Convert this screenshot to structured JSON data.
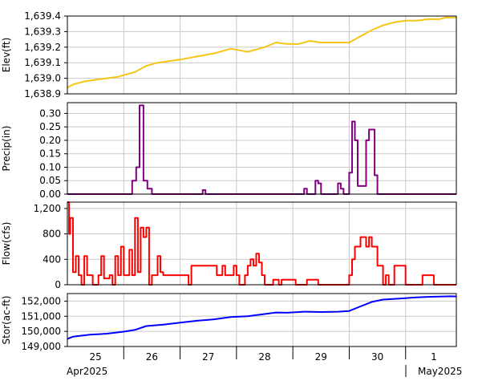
{
  "chart_data": [
    {
      "type": "line",
      "ylabel": "Elev(ft)",
      "ylim": [
        1638.9,
        1639.4
      ],
      "yticks": [
        1638.9,
        1639.0,
        1639.1,
        1639.2,
        1639.3,
        1639.4
      ],
      "ytick_labels": [
        "1,638.9",
        "1,639.0",
        "1,639.1",
        "1,639.2",
        "1,639.3",
        "1,639.4"
      ],
      "color": "#f5c518",
      "step": false,
      "x": [
        0,
        0.1,
        0.3,
        0.5,
        0.7,
        0.9,
        1.0,
        1.2,
        1.4,
        1.6,
        1.8,
        2.0,
        2.3,
        2.6,
        2.9,
        3.2,
        3.5,
        3.7,
        3.9,
        4.1,
        4.3,
        4.5,
        4.7,
        4.9,
        5.0,
        5.2,
        5.4,
        5.6,
        5.8,
        6.0,
        6.2,
        6.4,
        6.6,
        6.7,
        6.8,
        6.9
      ],
      "values": [
        1638.94,
        1638.96,
        1638.98,
        1638.99,
        1639.0,
        1639.01,
        1639.02,
        1639.04,
        1639.08,
        1639.1,
        1639.11,
        1639.12,
        1639.14,
        1639.16,
        1639.19,
        1639.17,
        1639.2,
        1639.23,
        1639.22,
        1639.22,
        1639.24,
        1639.23,
        1639.23,
        1639.23,
        1639.23,
        1639.27,
        1639.31,
        1639.34,
        1639.36,
        1639.37,
        1639.37,
        1639.38,
        1639.38,
        1639.39,
        1639.39,
        1639.39
      ]
    },
    {
      "type": "line",
      "ylabel": "Precip(in)",
      "ylim": [
        0,
        0.34
      ],
      "yticks": [
        0,
        0.05,
        0.1,
        0.15,
        0.2,
        0.25,
        0.3
      ],
      "ytick_labels": [
        "0.00",
        "0.05",
        "0.10",
        "0.15",
        "0.20",
        "0.25",
        "0.30"
      ],
      "color": "#800080",
      "step": true,
      "x": [
        0,
        1.15,
        1.22,
        1.28,
        1.35,
        1.42,
        1.5,
        2.4,
        2.45,
        4.2,
        4.25,
        4.4,
        4.45,
        4.5,
        4.8,
        4.85,
        4.9,
        5.0,
        5.05,
        5.1,
        5.15,
        5.2,
        5.3,
        5.35,
        5.45,
        5.5,
        6.9
      ],
      "values": [
        0,
        0.05,
        0.1,
        0.33,
        0.05,
        0.02,
        0,
        0.015,
        0,
        0.02,
        0,
        0.05,
        0.04,
        0,
        0.04,
        0.02,
        0,
        0.08,
        0.27,
        0.2,
        0.03,
        0.03,
        0.2,
        0.24,
        0.07,
        0,
        0
      ]
    },
    {
      "type": "line",
      "ylabel": "Flow(cfs)",
      "ylim": [
        0,
        1300
      ],
      "yticks": [
        0,
        400,
        800,
        1200
      ],
      "ytick_labels": [
        "0",
        "400",
        "800",
        "1,200"
      ],
      "color": "#ff0000",
      "step": true,
      "x": [
        0,
        0.03,
        0.05,
        0.1,
        0.15,
        0.2,
        0.25,
        0.3,
        0.35,
        0.45,
        0.55,
        0.6,
        0.65,
        0.75,
        0.8,
        0.85,
        0.9,
        0.95,
        1.0,
        1.1,
        1.15,
        1.2,
        1.25,
        1.3,
        1.35,
        1.4,
        1.45,
        1.5,
        1.6,
        1.65,
        1.7,
        2.0,
        2.15,
        2.2,
        2.6,
        2.65,
        2.75,
        2.8,
        2.95,
        3.0,
        3.05,
        3.1,
        3.15,
        3.2,
        3.25,
        3.3,
        3.35,
        3.4,
        3.45,
        3.5,
        3.6,
        3.65,
        3.75,
        3.8,
        4.05,
        4.2,
        4.25,
        4.45,
        4.6,
        4.75,
        5.0,
        5.05,
        5.1,
        5.15,
        5.2,
        5.3,
        5.35,
        5.4,
        5.5,
        5.6,
        5.65,
        5.7,
        5.8,
        5.85,
        6.0,
        6.3,
        6.5,
        6.9
      ],
      "values": [
        1300,
        800,
        1050,
        200,
        450,
        150,
        0,
        450,
        150,
        0,
        150,
        450,
        100,
        150,
        0,
        450,
        150,
        600,
        150,
        550,
        150,
        1050,
        200,
        900,
        750,
        900,
        0,
        150,
        450,
        200,
        150,
        150,
        0,
        300,
        300,
        150,
        300,
        150,
        300,
        150,
        0,
        0,
        150,
        300,
        400,
        300,
        490,
        350,
        150,
        0,
        0,
        80,
        0,
        80,
        0,
        0,
        80,
        0,
        0,
        0,
        150,
        400,
        600,
        600,
        750,
        600,
        750,
        600,
        300,
        0,
        150,
        0,
        300,
        300,
        0,
        150,
        0,
        0
      ]
    },
    {
      "type": "line",
      "ylabel": "Stor(ac-ft)",
      "ylim": [
        149000,
        152500
      ],
      "yticks": [
        149000,
        150000,
        151000,
        152000
      ],
      "ytick_labels": [
        "149,000",
        "150,000",
        "151,000",
        "152,000"
      ],
      "color": "#0000ff",
      "step": false,
      "x": [
        0,
        0.1,
        0.4,
        0.7,
        1.0,
        1.2,
        1.4,
        1.7,
        2.0,
        2.3,
        2.6,
        2.9,
        3.2,
        3.5,
        3.7,
        3.9,
        4.2,
        4.5,
        4.8,
        5.0,
        5.2,
        5.4,
        5.6,
        5.8,
        6.0,
        6.2,
        6.4,
        6.6,
        6.8,
        6.9
      ],
      "values": [
        149500,
        149650,
        149780,
        149850,
        149980,
        150100,
        150350,
        150450,
        150580,
        150700,
        150800,
        150950,
        151000,
        151150,
        151250,
        151230,
        151300,
        151280,
        151300,
        151350,
        151650,
        151950,
        152100,
        152150,
        152200,
        152250,
        152280,
        152300,
        152320,
        152310
      ]
    }
  ],
  "x_axis": {
    "range": [
      0,
      6.9
    ],
    "ticks": [
      0.5,
      1.5,
      2.5,
      3.5,
      4.5,
      5.5,
      6.5
    ],
    "tick_labels": [
      "25",
      "26",
      "27",
      "28",
      "29",
      "30",
      "1"
    ],
    "month_labels": [
      "Apr2025",
      "May2025"
    ],
    "grid": true
  }
}
